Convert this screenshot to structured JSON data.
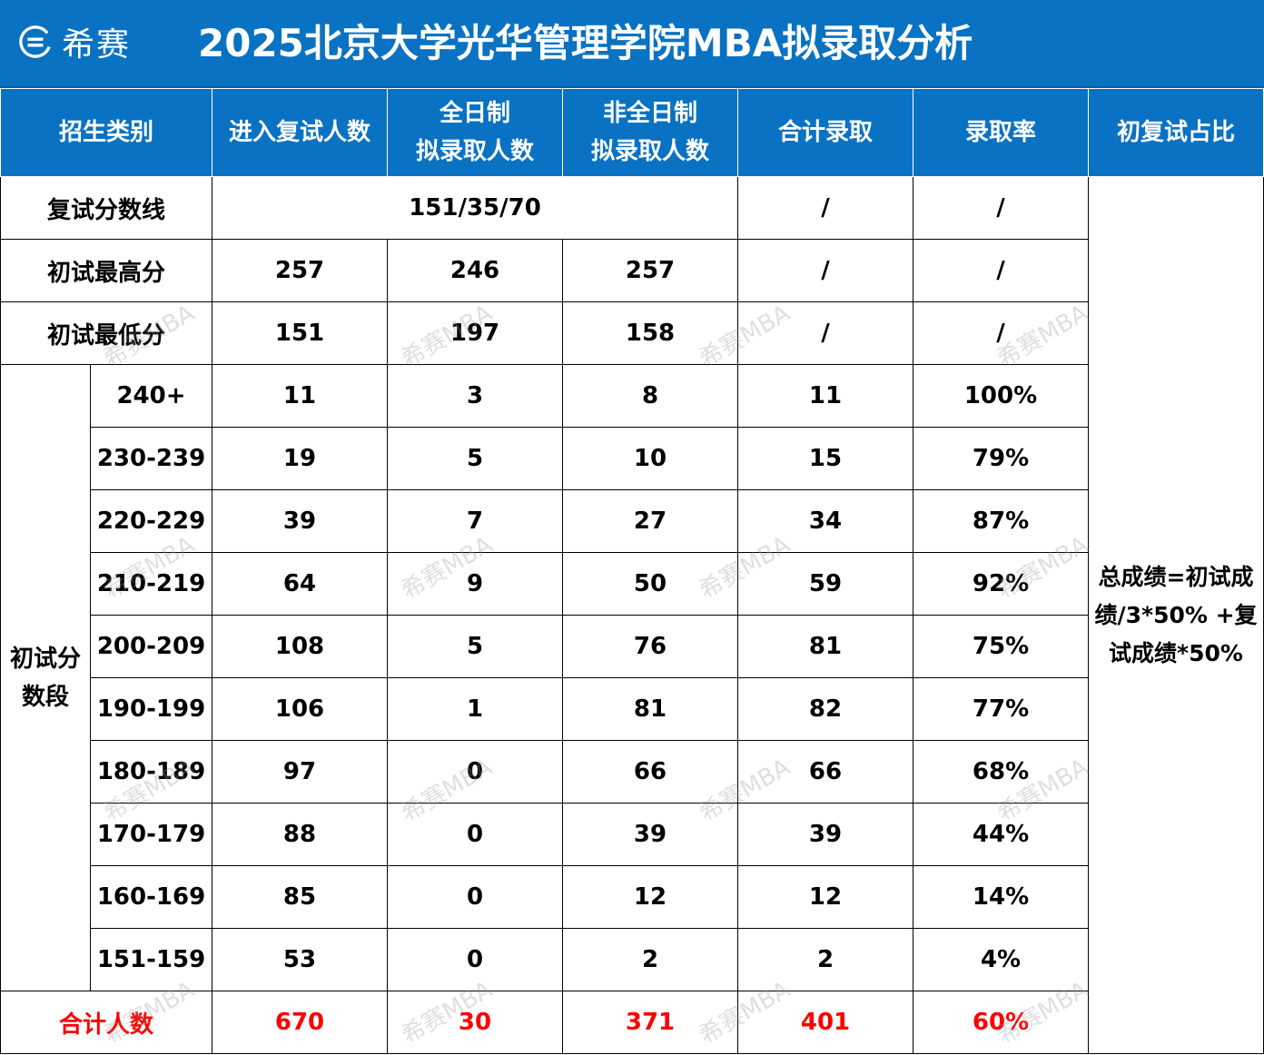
{
  "header": {
    "logo_text": "希赛",
    "title": "2025北京大学光华管理学院MBA拟录取分析"
  },
  "columns": [
    "招生类别",
    "进入复试人数",
    "全日制",
    "拟录取人数",
    "非全日制",
    "拟录取人数",
    "合计录取",
    "录取率",
    "初复试占比"
  ],
  "rows": {
    "retest_line": {
      "label": "复试分数线",
      "value": "151/35/70",
      "total": "/",
      "rate": "/"
    },
    "max_score": {
      "label": "初试最高分",
      "entered": "257",
      "full": "246",
      "part": "257",
      "total": "/",
      "rate": "/"
    },
    "min_score": {
      "label": "初试最低分",
      "entered": "151",
      "full": "197",
      "part": "158",
      "total": "/",
      "rate": "/"
    }
  },
  "band_group": {
    "label_line1": "初试分",
    "label_line2": "数段"
  },
  "bands": [
    {
      "range": "240+",
      "entered": "11",
      "full": "3",
      "part": "8",
      "total": "11",
      "rate": "100%"
    },
    {
      "range": "230-239",
      "entered": "19",
      "full": "5",
      "part": "10",
      "total": "15",
      "rate": "79%"
    },
    {
      "range": "220-229",
      "entered": "39",
      "full": "7",
      "part": "27",
      "total": "34",
      "rate": "87%"
    },
    {
      "range": "210-219",
      "entered": "64",
      "full": "9",
      "part": "50",
      "total": "59",
      "rate": "92%"
    },
    {
      "range": "200-209",
      "entered": "108",
      "full": "5",
      "part": "76",
      "total": "81",
      "rate": "75%"
    },
    {
      "range": "190-199",
      "entered": "106",
      "full": "1",
      "part": "81",
      "total": "82",
      "rate": "77%"
    },
    {
      "range": "180-189",
      "entered": "97",
      "full": "0",
      "part": "66",
      "total": "66",
      "rate": "68%"
    },
    {
      "range": "170-179",
      "entered": "88",
      "full": "0",
      "part": "39",
      "total": "39",
      "rate": "44%"
    },
    {
      "range": "160-169",
      "entered": "85",
      "full": "0",
      "part": "12",
      "total": "12",
      "rate": "14%"
    },
    {
      "range": "151-159",
      "entered": "53",
      "full": "0",
      "part": "2",
      "total": "2",
      "rate": "4%"
    }
  ],
  "totals": {
    "label": "合计人数",
    "entered": "670",
    "full": "30",
    "part": "371",
    "total": "401",
    "rate": "60%"
  },
  "note": {
    "line1": "总成绩=初试成",
    "line2": "绩/3*50% +复",
    "line3": "试成绩*50%"
  },
  "watermark": "希赛MBA",
  "colors": {
    "header_blue": "#0a72c2",
    "total_red": "#ff0000"
  }
}
